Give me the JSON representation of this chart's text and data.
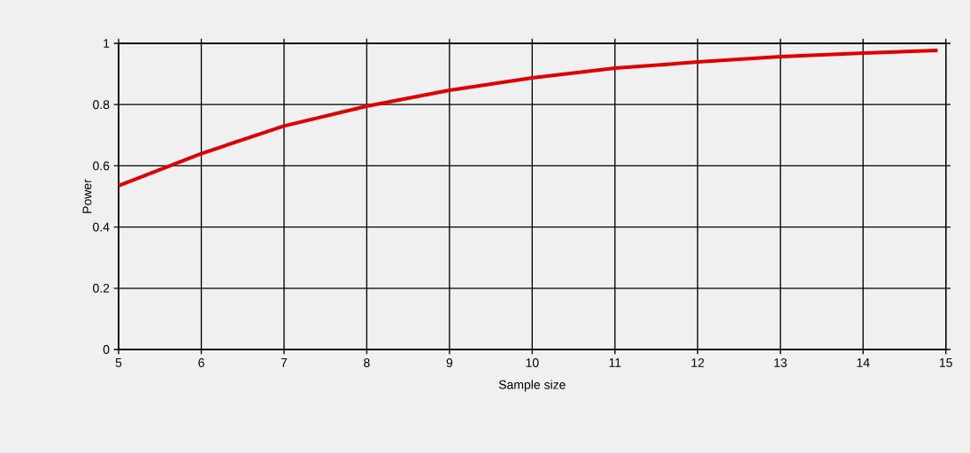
{
  "chart_data": {
    "type": "line",
    "xlabel": "Sample size",
    "ylabel": "Power",
    "x": [
      5,
      6,
      7,
      8,
      9,
      10,
      11,
      12,
      13,
      14,
      14.9
    ],
    "series": [
      {
        "color": "#e00000",
        "values": [
          0.535,
          0.64,
          0.73,
          0.795,
          0.847,
          0.887,
          0.919,
          0.939,
          0.957,
          0.968,
          0.977
        ]
      }
    ],
    "xlim": [
      5,
      15
    ],
    "ylim": [
      0,
      1
    ],
    "xticks": [
      5,
      6,
      7,
      8,
      9,
      10,
      11,
      12,
      13,
      14,
      15
    ],
    "yticks": [
      0,
      0.2,
      0.4,
      0.6,
      0.8,
      1
    ],
    "grid": true,
    "legend": false,
    "marker": "none",
    "line_style": "solid"
  }
}
